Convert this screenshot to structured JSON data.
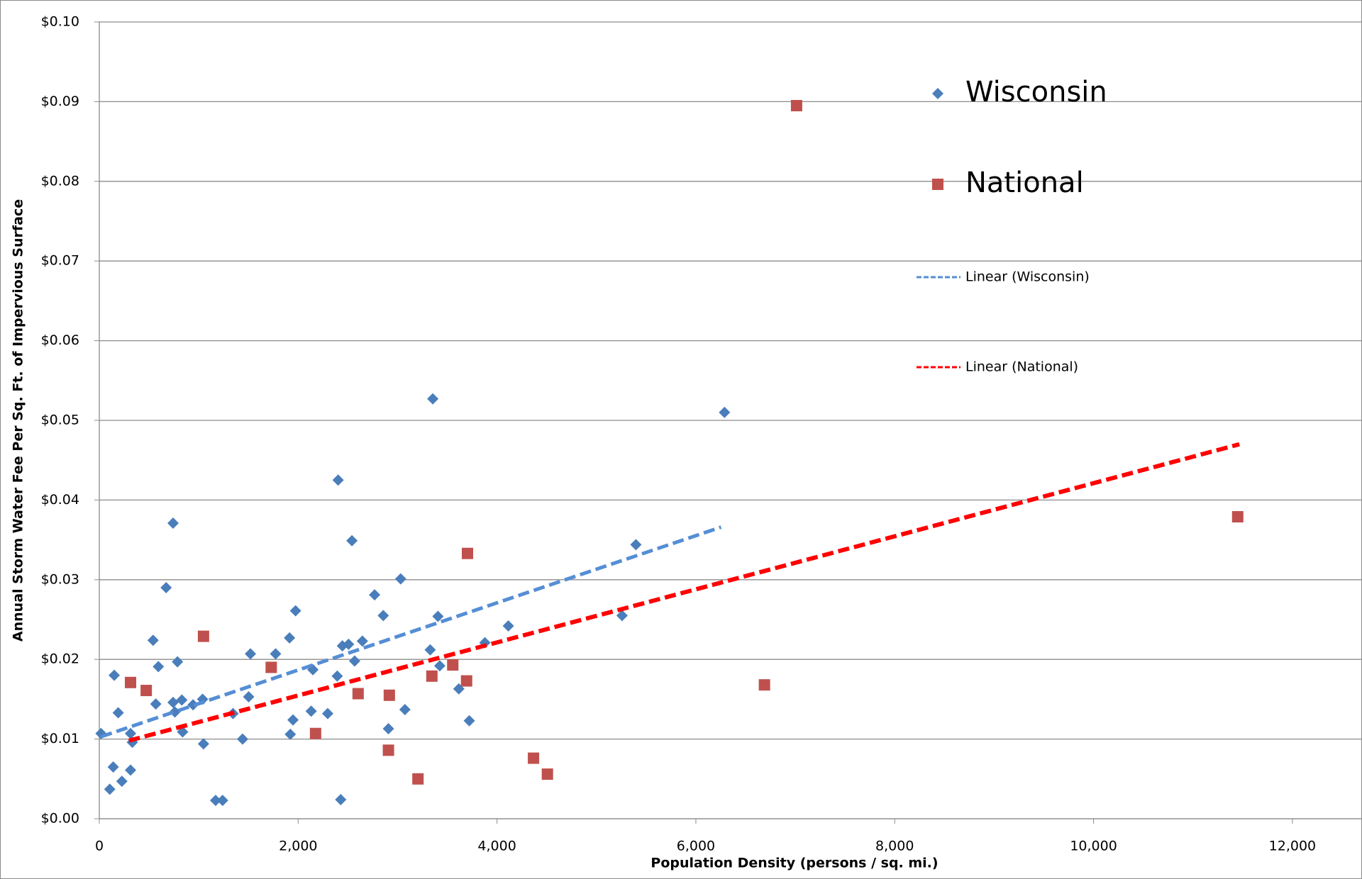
{
  "chart_data": {
    "type": "scatter",
    "x_label": "Population Density (persons / sq. mi.)",
    "y_label": "Annual Storm Water Fee Per Sq. Ft. of Impervious Surface",
    "xlim": [
      0,
      12700
    ],
    "xticks": [
      0,
      {
        "value": 2000,
        "label": "2,000"
      },
      {
        "value": 4000,
        "label": "4,000"
      },
      {
        "value": 6000,
        "label": "6,000"
      },
      {
        "value": 8000,
        "label": "8,000"
      },
      {
        "value": 10000,
        "label": "10,000"
      },
      {
        "value": 12000,
        "label": "12,000"
      }
    ],
    "ylim": [
      0,
      0.1
    ],
    "yticks": [
      {
        "value": 0,
        "label": "$0.00"
      },
      {
        "value": 0.01,
        "label": "$0.01"
      },
      {
        "value": 0.02,
        "label": "$0.02"
      },
      {
        "value": 0.03,
        "label": "$0.03"
      },
      {
        "value": 0.04,
        "label": "$0.04"
      },
      {
        "value": 0.05,
        "label": "$0.05"
      },
      {
        "value": 0.06,
        "label": "$0.06"
      },
      {
        "value": 0.07,
        "label": "$0.07"
      },
      {
        "value": 0.08,
        "label": "$0.08"
      },
      {
        "value": 0.09,
        "label": "$0.09"
      },
      {
        "value": 0.1,
        "label": "$0.10"
      }
    ],
    "grid": true,
    "legend": "top-right",
    "series": [
      {
        "name": "Wisconsin",
        "color": "#4a7ebb",
        "marker": "diamond",
        "x": [
          17,
          150,
          190,
          140,
          105,
          227,
          314,
          314,
          332,
          541,
          568,
          594,
          672,
          742,
          742,
          760,
          786,
          830,
          838,
          943,
          1039,
          1048,
          1170,
          1240,
          1345,
          1441,
          1502,
          1520,
          1773,
          1913,
          1921,
          1948,
          1974,
          2131,
          2148,
          2297,
          2393,
          2402,
          2428,
          2445,
          2507,
          2541,
          2568,
          2646,
          2769,
          2856,
          2908,
          3031,
          3074,
          3328,
          3354,
          3406,
          3424,
          3616,
          3721,
          3878,
          4114,
          5258,
          5397,
          6288
        ],
        "values": [
          0.0107,
          0.018,
          0.0133,
          0.0065,
          0.0037,
          0.0047,
          0.0061,
          0.0107,
          0.0096,
          0.0224,
          0.0144,
          0.0191,
          0.029,
          0.0371,
          0.0146,
          0.0134,
          0.0197,
          0.0149,
          0.0109,
          0.0143,
          0.015,
          0.0094,
          0.0023,
          0.0023,
          0.0132,
          0.01,
          0.0153,
          0.0207,
          0.0207,
          0.0227,
          0.0106,
          0.0124,
          0.0261,
          0.0135,
          0.0187,
          0.0132,
          0.0179,
          0.0425,
          0.0024,
          0.0217,
          0.0219,
          0.0349,
          0.0198,
          0.0223,
          0.0281,
          0.0255,
          0.0113,
          0.0301,
          0.0137,
          0.0212,
          0.0527,
          0.0254,
          0.0192,
          0.0163,
          0.0123,
          0.0221,
          0.0242,
          0.0255,
          0.0344,
          0.051
        ]
      },
      {
        "name": "National",
        "color": "#c0504d",
        "marker": "square",
        "x": [
          314,
          472,
          1048,
          1729,
          2175,
          2603,
          2917,
          2908,
          3205,
          3345,
          3555,
          3694,
          3703,
          4367,
          4507,
          6690,
          7013,
          11450
        ],
        "values": [
          0.0171,
          0.0161,
          0.0229,
          0.019,
          0.0107,
          0.0157,
          0.0155,
          0.0086,
          0.005,
          0.0179,
          0.0193,
          0.0173,
          0.0333,
          0.0076,
          0.0056,
          0.0168,
          0.0895,
          0.0379
        ]
      },
      {
        "name": "Linear (Wisconsin)",
        "color": "#558ed5",
        "style": "dashed",
        "x": [
          17,
          6253
        ],
        "values": [
          0.0103,
          0.0366
        ]
      },
      {
        "name": "Linear (National)",
        "color": "#ff0000",
        "style": "dashed",
        "x": [
          297,
          11467
        ],
        "values": [
          0.0098,
          0.047
        ]
      }
    ]
  }
}
